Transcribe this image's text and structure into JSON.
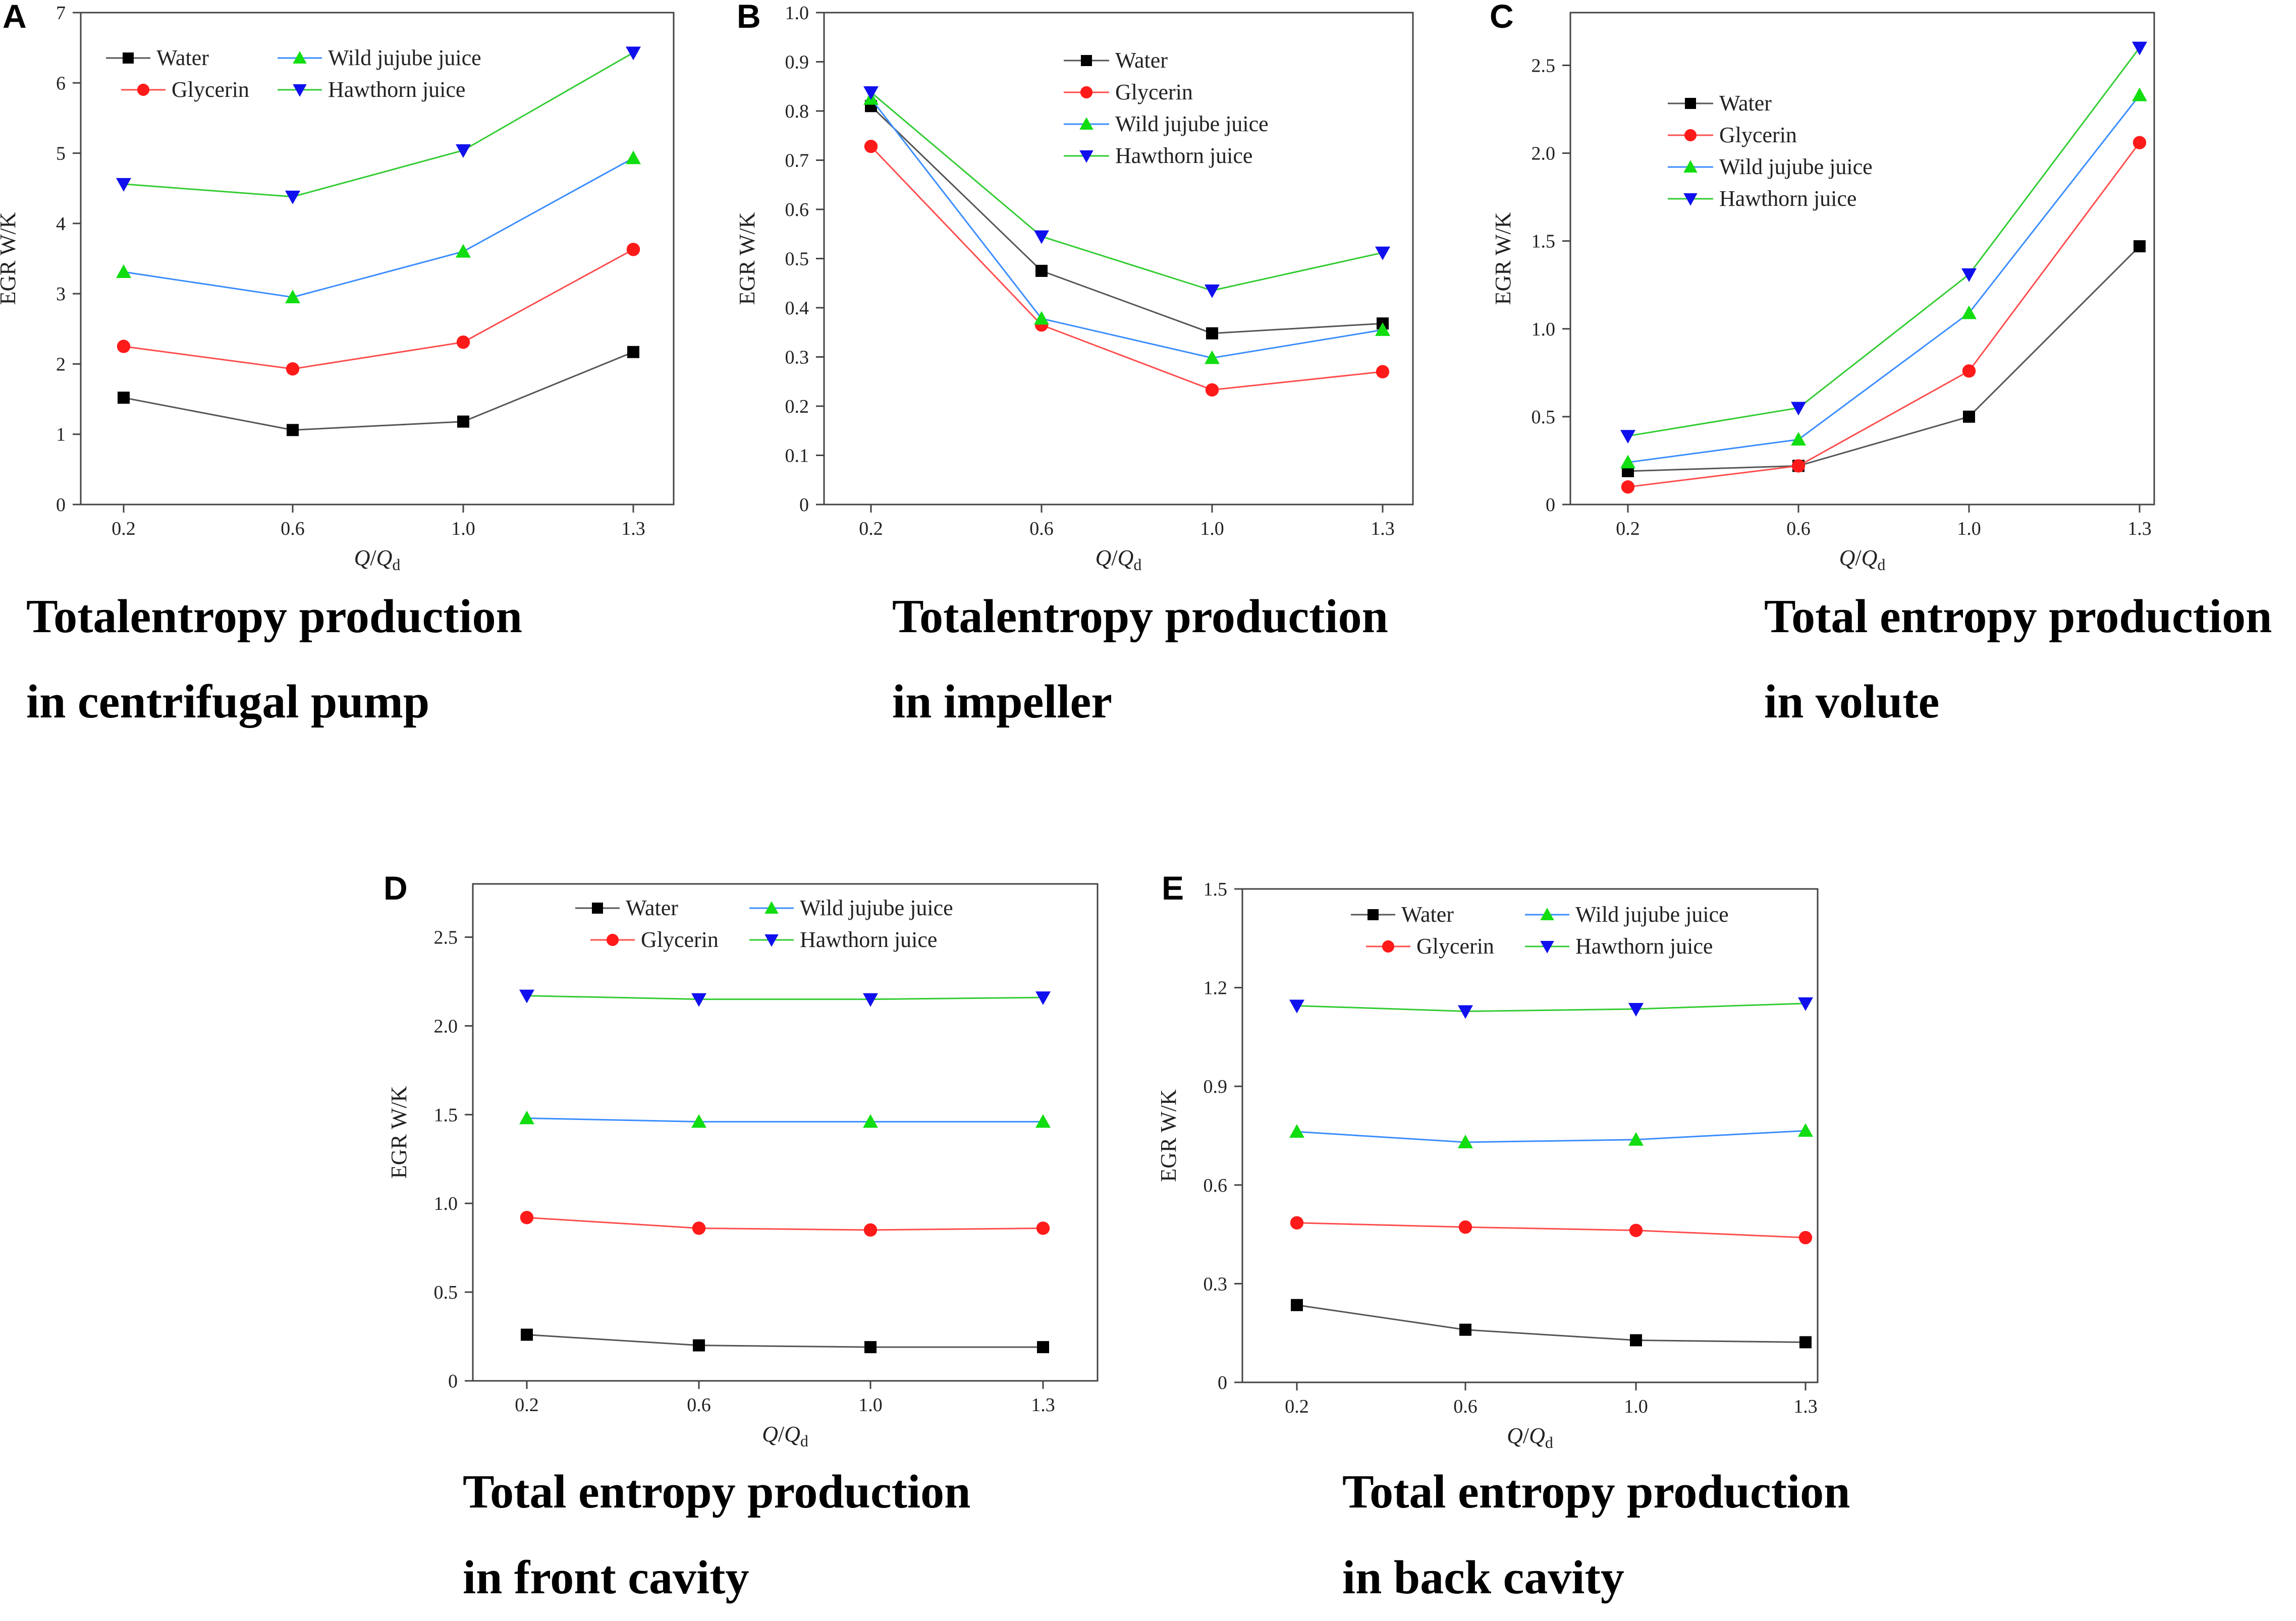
{
  "colors": {
    "Water": "#000000",
    "Glycerin": "#ff1a1a",
    "Wild jujube juice": "#11dd11",
    "Hawthorn juice": "#1010ee"
  },
  "line_colors": {
    "Water": "#555555",
    "Glycerin": "#ff4d4d",
    "Wild jujube juice": "#3a8dff",
    "Hawthorn juice": "#33cc33"
  },
  "markers": {
    "Water": "square",
    "Glycerin": "circle",
    "Wild jujube juice": "triangle-up",
    "Hawthorn juice": "triangle-down"
  },
  "chart_data": [
    {
      "panel": "A",
      "type": "line",
      "categories": [
        "0.2",
        "0.6",
        "1.0",
        "1.3"
      ],
      "xlabel": "Q/Qd",
      "ylabel": "EGR W/K",
      "ylim": [
        0,
        7
      ],
      "yticks": [
        "0",
        "1",
        "2",
        "3",
        "4",
        "5",
        "6",
        "7"
      ],
      "legend": "top-left",
      "series": [
        {
          "name": "Water",
          "values": [
            1.52,
            1.06,
            1.18,
            2.17
          ]
        },
        {
          "name": "Glycerin",
          "values": [
            2.25,
            1.93,
            2.31,
            3.63
          ]
        },
        {
          "name": "Wild jujube juice",
          "values": [
            3.31,
            2.95,
            3.6,
            4.93
          ]
        },
        {
          "name": "Hawthorn juice",
          "values": [
            4.56,
            4.38,
            5.04,
            6.43
          ]
        }
      ],
      "caption_lines": [
        "Totalentropy production",
        "in centrifugal pump"
      ]
    },
    {
      "panel": "B",
      "type": "line",
      "categories": [
        "0.2",
        "0.6",
        "1.0",
        "1.3"
      ],
      "xlabel": "Q/Qd",
      "ylabel": "EGR W/K",
      "ylim": [
        0,
        1.0
      ],
      "yticks": [
        "0",
        "0.1",
        "0.2",
        "0.3",
        "0.4",
        "0.5",
        "0.6",
        "0.7",
        "0.8",
        "0.9",
        "1.0"
      ],
      "legend": "top-right",
      "series": [
        {
          "name": "Water",
          "values": [
            0.81,
            0.475,
            0.348,
            0.368
          ]
        },
        {
          "name": "Glycerin",
          "values": [
            0.728,
            0.365,
            0.233,
            0.27
          ]
        },
        {
          "name": "Wild jujube juice",
          "values": [
            0.825,
            0.378,
            0.298,
            0.355
          ]
        },
        {
          "name": "Hawthorn juice",
          "values": [
            0.838,
            0.545,
            0.435,
            0.512
          ]
        }
      ],
      "caption_lines": [
        "Totalentropy production",
        "in impeller"
      ]
    },
    {
      "panel": "C",
      "type": "line",
      "categories": [
        "0.2",
        "0.6",
        "1.0",
        "1.3"
      ],
      "xlabel": "Q/Qd",
      "ylabel": "EGR W/K",
      "ylim": [
        0,
        2.8
      ],
      "yticks": [
        "0",
        "0.5",
        "1.0",
        "1.5",
        "2.0",
        "2.5"
      ],
      "ytick_values": [
        0,
        0.5,
        1.0,
        1.5,
        2.0,
        2.5
      ],
      "legend": "top-left",
      "series": [
        {
          "name": "Water",
          "values": [
            0.19,
            0.22,
            0.5,
            1.47
          ]
        },
        {
          "name": "Glycerin",
          "values": [
            0.1,
            0.22,
            0.76,
            2.06
          ]
        },
        {
          "name": "Wild jujube juice",
          "values": [
            0.24,
            0.37,
            1.09,
            2.33
          ]
        },
        {
          "name": "Hawthorn juice",
          "values": [
            0.39,
            0.55,
            1.31,
            2.6
          ]
        }
      ],
      "caption_lines": [
        "Total entropy production",
        "in volute"
      ]
    },
    {
      "panel": "D",
      "type": "line",
      "categories": [
        "0.2",
        "0.6",
        "1.0",
        "1.3"
      ],
      "xlabel": "Q/Qd",
      "ylabel": "EGR W/K",
      "ylim": [
        0,
        2.8
      ],
      "yticks": [
        "0",
        "0.5",
        "1.0",
        "1.5",
        "2.0",
        "2.5"
      ],
      "ytick_values": [
        0,
        0.5,
        1.0,
        1.5,
        2.0,
        2.5
      ],
      "legend": "top",
      "series": [
        {
          "name": "Water",
          "values": [
            0.26,
            0.2,
            0.19,
            0.19
          ]
        },
        {
          "name": "Glycerin",
          "values": [
            0.92,
            0.86,
            0.85,
            0.86
          ]
        },
        {
          "name": "Wild jujube juice",
          "values": [
            1.48,
            1.46,
            1.46,
            1.46
          ]
        },
        {
          "name": "Hawthorn juice",
          "values": [
            2.17,
            2.15,
            2.15,
            2.16
          ]
        }
      ],
      "caption_lines": [
        "Total entropy production",
        "in front cavity"
      ]
    },
    {
      "panel": "E",
      "type": "line",
      "categories": [
        "0.2",
        "0.6",
        "1.0",
        "1.3"
      ],
      "xlabel": "Q/Qd",
      "ylabel": "EGR W/K",
      "ylim": [
        0,
        1.5
      ],
      "yticks": [
        "0",
        "0.3",
        "0.6",
        "0.9",
        "1.2",
        "1.5"
      ],
      "legend": "top",
      "series": [
        {
          "name": "Water",
          "values": [
            0.235,
            0.16,
            0.128,
            0.122
          ]
        },
        {
          "name": "Glycerin",
          "values": [
            0.485,
            0.472,
            0.462,
            0.44
          ]
        },
        {
          "name": "Wild jujube juice",
          "values": [
            0.762,
            0.73,
            0.738,
            0.765
          ]
        },
        {
          "name": "Hawthorn juice",
          "values": [
            1.145,
            1.128,
            1.135,
            1.152
          ]
        }
      ],
      "caption_lines": [
        "Total entropy production",
        "in back cavity"
      ]
    }
  ]
}
